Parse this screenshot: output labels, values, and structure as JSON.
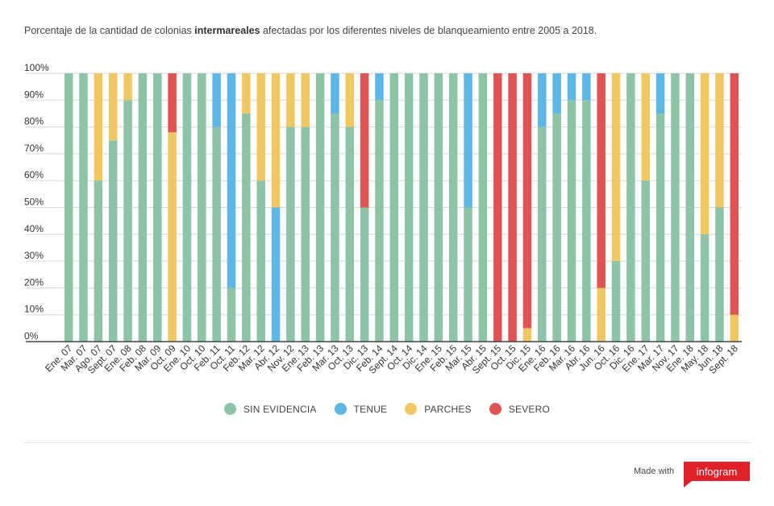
{
  "title": {
    "prefix": "Porcentaje de la cantidad de colonias ",
    "bold": "intermareales",
    "suffix": " afectadas por los diferentes niveles de blanqueamiento entre 2005 a 2018."
  },
  "footer": {
    "made_with": "Made with",
    "brand": "infogram"
  },
  "colors": {
    "sin_evidencia": "#8dc3a7",
    "tenue": "#5cb6e6",
    "parches": "#f0c862",
    "severo": "#e05353"
  },
  "chart_data": {
    "type": "bar",
    "stacked": true,
    "title": "Porcentaje de la cantidad de colonias intermareales afectadas por los diferentes niveles de blanqueamiento entre 2005 a 2018.",
    "ylim": [
      0,
      100
    ],
    "yticks": [
      "0%",
      "10%",
      "20%",
      "30%",
      "40%",
      "50%",
      "60%",
      "70%",
      "80%",
      "90%",
      "100%"
    ],
    "grid": true,
    "legend_position": "bottom",
    "categories": [
      "Ene. 07",
      "Mar. 07",
      "Ago. 07",
      "Sept. 07",
      "Ene. 08",
      "Feb. 08",
      "Mar. 09",
      "Oct. 09",
      "Ene. 10",
      "Oct. 10",
      "Feb. 11",
      "Oct. 11",
      "Feb. 12",
      "Mar. 12",
      "Abr. 12",
      "Nov. 12",
      "Ene. 13",
      "Feb. 13",
      "Mar. 13",
      "Oct. 13",
      "Dic. 13",
      "Feb. 14",
      "Sept. 14",
      "Oct. 14",
      "Dic. 14",
      "Ene. 15",
      "Feb. 15",
      "Mar. 15",
      "Abr. 15",
      "Sept. 15",
      "Oct. 15",
      "Dic. 15",
      "Ene. 16",
      "Feb. 16",
      "Mar. 16",
      "Abr. 16",
      "Jun. 16",
      "Oct. 16",
      "Dic. 16",
      "Ene. 17",
      "Mar. 17",
      "Nov. 17",
      "Ene. 18",
      "May. 18",
      "Jun. 18",
      "Sept. 18"
    ],
    "series": [
      {
        "name": "SIN EVIDENCIA",
        "color": "#8dc3a7",
        "values": [
          100,
          100,
          60,
          75,
          90,
          100,
          100,
          0,
          100,
          100,
          80,
          20,
          85,
          60,
          0,
          80,
          80,
          100,
          85,
          80,
          50,
          90,
          100,
          100,
          100,
          100,
          100,
          50,
          100,
          0,
          0,
          0,
          80,
          85,
          90,
          90,
          0,
          30,
          100,
          60,
          85,
          100,
          100,
          40,
          50,
          0
        ]
      },
      {
        "name": "TENUE",
        "color": "#5cb6e6",
        "values": [
          0,
          0,
          0,
          0,
          0,
          0,
          0,
          0,
          0,
          0,
          20,
          80,
          0,
          0,
          50,
          0,
          0,
          0,
          15,
          0,
          0,
          10,
          0,
          0,
          0,
          0,
          0,
          50,
          0,
          0,
          0,
          0,
          20,
          15,
          10,
          10,
          0,
          0,
          0,
          0,
          15,
          0,
          0,
          0,
          0,
          0
        ]
      },
      {
        "name": "PARCHES",
        "color": "#f0c862",
        "values": [
          0,
          0,
          40,
          25,
          10,
          0,
          0,
          78,
          0,
          0,
          0,
          0,
          15,
          40,
          50,
          20,
          20,
          0,
          0,
          20,
          0,
          0,
          0,
          0,
          0,
          0,
          0,
          0,
          0,
          0,
          0,
          5,
          0,
          0,
          0,
          0,
          20,
          70,
          0,
          40,
          0,
          0,
          0,
          60,
          50,
          10
        ]
      },
      {
        "name": "SEVERO",
        "color": "#e05353",
        "values": [
          0,
          0,
          0,
          0,
          0,
          0,
          0,
          22,
          0,
          0,
          0,
          0,
          0,
          0,
          0,
          0,
          0,
          0,
          0,
          0,
          50,
          0,
          0,
          0,
          0,
          0,
          0,
          0,
          0,
          100,
          100,
          95,
          0,
          0,
          0,
          0,
          80,
          0,
          0,
          0,
          0,
          0,
          0,
          0,
          0,
          90
        ]
      }
    ]
  }
}
